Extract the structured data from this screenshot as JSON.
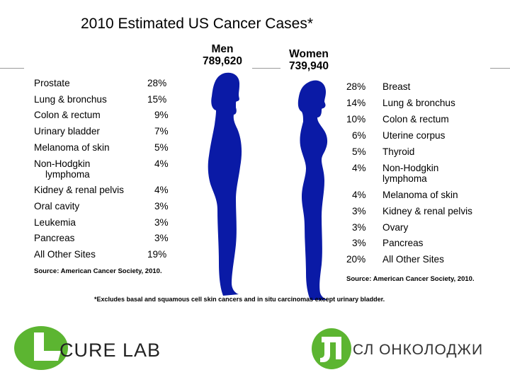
{
  "title": "2010 Estimated US Cancer Cases*",
  "men": {
    "label": "Men",
    "total": "789,620",
    "rows": [
      {
        "site": "Prostate",
        "pct": "28%"
      },
      {
        "site": "Lung & bronchus",
        "pct": "15%"
      },
      {
        "site": "Colon & rectum",
        "pct": "9%"
      },
      {
        "site": "Urinary bladder",
        "pct": "7%"
      },
      {
        "site": "Melanoma of skin",
        "pct": "5%"
      },
      {
        "site": "Non-Hodgkin",
        "site2": "lymphoma",
        "pct": "4%"
      },
      {
        "site": "Kidney & renal pelvis",
        "pct": "4%"
      },
      {
        "site": "Oral cavity",
        "pct": "3%"
      },
      {
        "site": "Leukemia",
        "pct": "3%"
      },
      {
        "site": "Pancreas",
        "pct": "3%"
      },
      {
        "site": "All Other Sites",
        "pct": "19%"
      }
    ],
    "source": "Source: American Cancer Society, 2010."
  },
  "women": {
    "label": "Women",
    "total": "739,940",
    "rows": [
      {
        "site": "Breast",
        "pct": "28%"
      },
      {
        "site": "Lung & bronchus",
        "pct": "14%"
      },
      {
        "site": "Colon & rectum",
        "pct": "10%"
      },
      {
        "site": "Uterine corpus",
        "pct": "6%"
      },
      {
        "site": "Thyroid",
        "pct": "5%"
      },
      {
        "site": "Non-Hodgkin",
        "site2": "lymphoma",
        "pct": "4%"
      },
      {
        "site": "Melanoma of skin",
        "pct": "4%"
      },
      {
        "site": "Kidney & renal pelvis",
        "pct": "3%"
      },
      {
        "site": "Ovary",
        "pct": "3%"
      },
      {
        "site": "Pancreas",
        "pct": "3%"
      },
      {
        "site": "All Other Sites",
        "pct": "20%"
      }
    ],
    "source": "Source: American Cancer Society, 2010."
  },
  "footnote": "*Excludes basal and squamous cell skin cancers and in situ carcinomas except urinary bladder.",
  "logos": {
    "left_text": "CURE LAB",
    "right_text": "СЛ ОНКОЛОДЖИ",
    "green": "#5cb531"
  },
  "colors": {
    "figure": "#0a1aa6"
  }
}
